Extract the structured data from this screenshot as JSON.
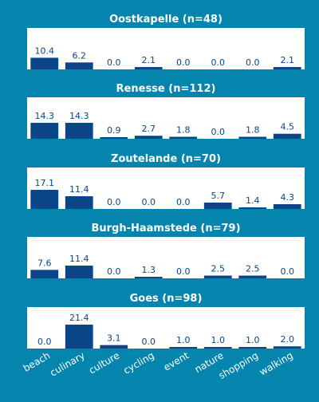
{
  "colors": {
    "background": "#0585ad",
    "panel": "#ffffff",
    "bar": "#0a4588",
    "value_label": "#0a4588",
    "title": "#ffffff",
    "tick_label": "#ffffff"
  },
  "chart_data": [
    {
      "type": "bar",
      "title": "Oostkapelle (n=48)",
      "categories": [
        "beach",
        "culinary",
        "culture",
        "cycling",
        "event",
        "nature",
        "shopping",
        "walking"
      ],
      "values": [
        10.4,
        6.2,
        0.0,
        2.1,
        0.0,
        0.0,
        0.0,
        2.1
      ],
      "labels": [
        "10.4",
        "6.2",
        "0.0",
        "2.1",
        "0.0",
        "0.0",
        "0.0",
        "2.1"
      ],
      "ylim": [
        0,
        21.4
      ]
    },
    {
      "type": "bar",
      "title": "Renesse (n=112)",
      "categories": [
        "beach",
        "culinary",
        "culture",
        "cycling",
        "event",
        "nature",
        "shopping",
        "walking"
      ],
      "values": [
        14.3,
        14.3,
        0.9,
        2.7,
        1.8,
        0.0,
        1.8,
        4.5
      ],
      "labels": [
        "14.3",
        "14.3",
        "0.9",
        "2.7",
        "1.8",
        "0.0",
        "1.8",
        "4.5"
      ],
      "ylim": [
        0,
        21.4
      ]
    },
    {
      "type": "bar",
      "title": "Zoutelande (n=70)",
      "categories": [
        "beach",
        "culinary",
        "culture",
        "cycling",
        "event",
        "nature",
        "shopping",
        "walking"
      ],
      "values": [
        17.1,
        11.4,
        0.0,
        0.0,
        0.0,
        5.7,
        1.4,
        4.3
      ],
      "labels": [
        "17.1",
        "11.4",
        "0.0",
        "0.0",
        "0.0",
        "5.7",
        "1.4",
        "4.3"
      ],
      "ylim": [
        0,
        21.4
      ]
    },
    {
      "type": "bar",
      "title": "Burgh-Haamstede (n=79)",
      "categories": [
        "beach",
        "culinary",
        "culture",
        "cycling",
        "event",
        "nature",
        "shopping",
        "walking"
      ],
      "values": [
        7.6,
        11.4,
        0.0,
        1.3,
        0.0,
        2.5,
        2.5,
        0.0
      ],
      "labels": [
        "7.6",
        "11.4",
        "0.0",
        "1.3",
        "0.0",
        "2.5",
        "2.5",
        "0.0"
      ],
      "ylim": [
        0,
        21.4
      ]
    },
    {
      "type": "bar",
      "title": "Goes (n=98)",
      "categories": [
        "beach",
        "culinary",
        "culture",
        "cycling",
        "event",
        "nature",
        "shopping",
        "walking"
      ],
      "values": [
        0.0,
        21.4,
        3.1,
        0.0,
        1.0,
        1.0,
        1.0,
        2.0
      ],
      "labels": [
        "0.0",
        "21.4",
        "3.1",
        "0.0",
        "1.0",
        "1.0",
        "1.0",
        "2.0"
      ],
      "ylim": [
        0,
        21.4
      ]
    }
  ]
}
